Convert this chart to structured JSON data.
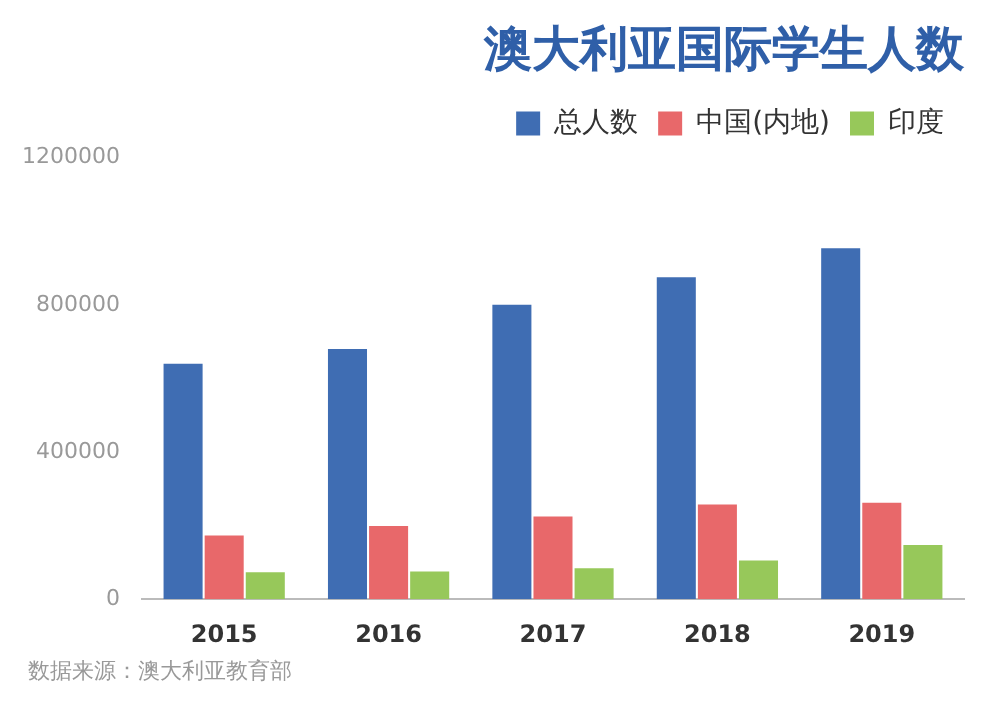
{
  "chart_data": {
    "type": "bar",
    "title": "澳大利亚国际学生人数",
    "categories": [
      "2015",
      "2016",
      "2017",
      "2018",
      "2019"
    ],
    "series": [
      {
        "name": "总人数",
        "color": "#3f6db3",
        "values": [
          640000,
          680000,
          800000,
          875000,
          954000
        ]
      },
      {
        "name": "中国(内地)",
        "color": "#e8686a",
        "values": [
          173000,
          199000,
          225000,
          257000,
          262000
        ]
      },
      {
        "name": "印度",
        "color": "#97c85a",
        "values": [
          73000,
          75000,
          84000,
          105000,
          147000
        ]
      }
    ],
    "ylim": [
      0,
      1200000
    ],
    "yticks": [
      0,
      400000,
      800000,
      1200000
    ],
    "grid": false,
    "legend": "top right",
    "annotations": [
      "数据来源：澳大利亚教育部"
    ]
  }
}
